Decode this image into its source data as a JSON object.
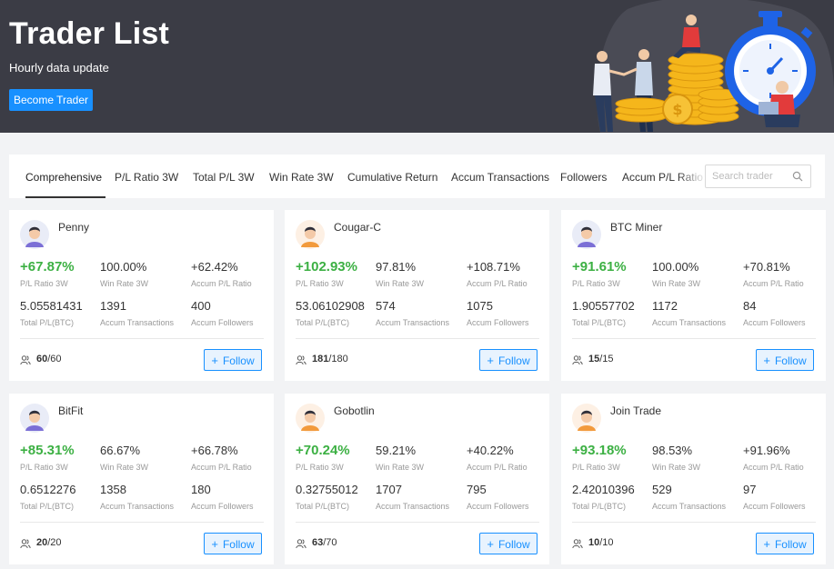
{
  "header": {
    "title": "Trader List",
    "subtitle": "Hourly data update",
    "become_trader_label": "Become Trader"
  },
  "tabs": [
    {
      "label": "Comprehensive",
      "active": true
    },
    {
      "label": "P/L Ratio 3W",
      "active": false
    },
    {
      "label": "Total P/L 3W",
      "active": false
    },
    {
      "label": "Win Rate 3W",
      "active": false
    },
    {
      "label": "Cumulative Return",
      "active": false
    },
    {
      "label": "Accum Transactions",
      "active": false
    },
    {
      "label": "Followers",
      "active": false
    },
    {
      "label": "Accum P/L Ratio",
      "active": false
    }
  ],
  "search": {
    "placeholder": "Search trader",
    "value": ""
  },
  "labels": {
    "pl_ratio_3w": "P/L Ratio 3W",
    "win_rate_3w": "Win Rate 3W",
    "accum_pl_ratio": "Accum P/L Ratio",
    "total_pl_btc": "Total P/L(BTC)",
    "accum_transactions": "Accum Transactions",
    "accum_followers": "Accum Followers",
    "follow": "Follow"
  },
  "traders": [
    {
      "name": "Penny",
      "pl_ratio_3w": "+67.87%",
      "win_rate_3w": "100.00%",
      "accum_pl_ratio": "+62.42%",
      "total_pl_btc": "5.05581431",
      "accum_transactions": "1391",
      "accum_followers": "400",
      "followers_current": "60",
      "followers_max": "/60"
    },
    {
      "name": "Cougar-C",
      "pl_ratio_3w": "+102.93%",
      "win_rate_3w": "97.81%",
      "accum_pl_ratio": "+108.71%",
      "total_pl_btc": "53.06102908",
      "accum_transactions": "574",
      "accum_followers": "1075",
      "followers_current": "181",
      "followers_max": "/180"
    },
    {
      "name": "BTC Miner",
      "pl_ratio_3w": "+91.61%",
      "win_rate_3w": "100.00%",
      "accum_pl_ratio": "+70.81%",
      "total_pl_btc": "1.90557702",
      "accum_transactions": "1172",
      "accum_followers": "84",
      "followers_current": "15",
      "followers_max": "/15"
    },
    {
      "name": "BitFit",
      "pl_ratio_3w": "+85.31%",
      "win_rate_3w": "66.67%",
      "accum_pl_ratio": "+66.78%",
      "total_pl_btc": "0.6512276",
      "accum_transactions": "1358",
      "accum_followers": "180",
      "followers_current": "20",
      "followers_max": "/20"
    },
    {
      "name": "Gobotlin",
      "pl_ratio_3w": "+70.24%",
      "win_rate_3w": "59.21%",
      "accum_pl_ratio": "+40.22%",
      "total_pl_btc": "0.32755012",
      "accum_transactions": "1707",
      "accum_followers": "795",
      "followers_current": "63",
      "followers_max": "/70"
    },
    {
      "name": "Join Trade",
      "pl_ratio_3w": "+93.18%",
      "win_rate_3w": "98.53%",
      "accum_pl_ratio": "+91.96%",
      "total_pl_btc": "2.42010396",
      "accum_transactions": "529",
      "accum_followers": "97",
      "followers_current": "10",
      "followers_max": "/10"
    }
  ],
  "colors": {
    "hero_bg": "#3b3c45",
    "accent_blue": "#1890ff",
    "positive_green": "#3cb043",
    "page_bg": "#f2f3f5"
  }
}
